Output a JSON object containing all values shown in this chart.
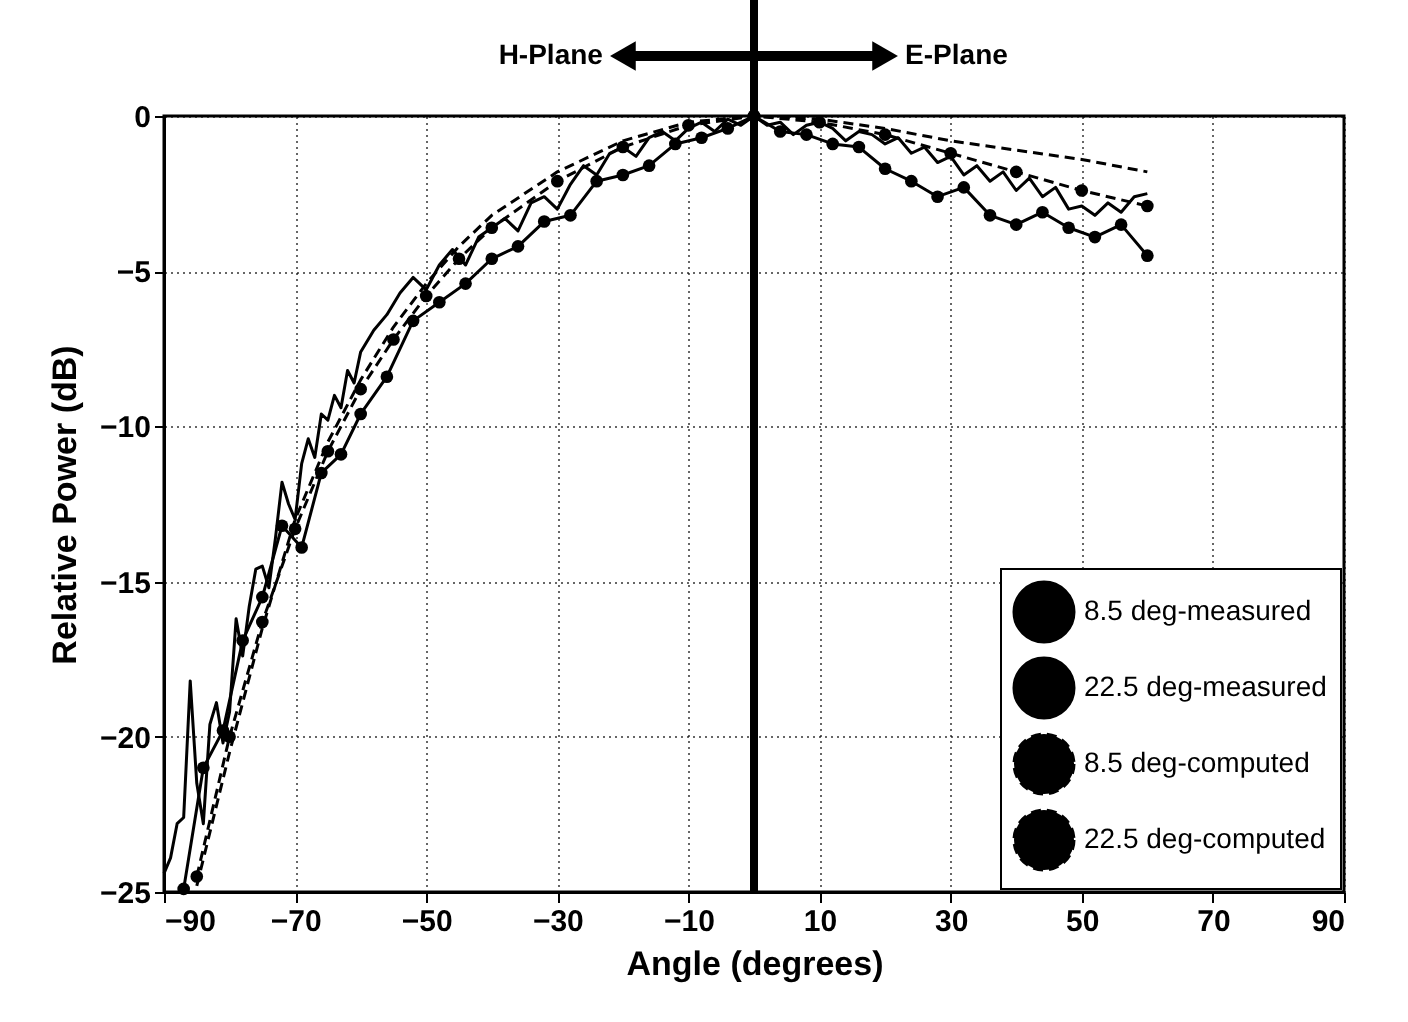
{
  "chart_data": {
    "type": "line",
    "xlabel": "Angle (degrees)",
    "ylabel": "Relative Power (dB)",
    "xlim": [
      -90,
      90
    ],
    "xticks": [
      -90,
      -70,
      -50,
      -30,
      -10,
      10,
      30,
      50,
      70,
      90
    ],
    "ylim": [
      -25,
      0
    ],
    "yticks": [
      0,
      -5,
      -10,
      -15,
      -20,
      -25
    ],
    "grid": true,
    "legend": "bottom right",
    "annotations": [
      "H-Plane",
      "E-Plane"
    ],
    "ref_lines": [
      {
        "axis": "x",
        "value": 0,
        "color": "#000000"
      }
    ],
    "series": [
      {
        "name": "8.5 deg-measured",
        "color": "#000000",
        "line_style": "solid",
        "marker": "none",
        "x": [
          -90,
          -89,
          -88,
          -87,
          -86,
          -85,
          -84,
          -83,
          -82,
          -81,
          -80,
          -79,
          -78,
          -77,
          -76,
          -75,
          -74,
          -73,
          -72,
          -71,
          -70,
          -69,
          -68,
          -67,
          -66,
          -65,
          -64,
          -63,
          -62,
          -61,
          -60,
          -58,
          -56,
          -54,
          -52,
          -50,
          -48,
          -46,
          -44,
          -42,
          -40,
          -38,
          -36,
          -34,
          -32,
          -30,
          -28,
          -26,
          -24,
          -22,
          -20,
          -18,
          -16,
          -14,
          -12,
          -10,
          -8,
          -6,
          -4,
          -2,
          0,
          2,
          4,
          6,
          8,
          10,
          12,
          14,
          16,
          18,
          20,
          22,
          24,
          26,
          28,
          30,
          32,
          34,
          36,
          38,
          40,
          42,
          44,
          46,
          48,
          50,
          52,
          54,
          56,
          58,
          60
        ],
        "values": [
          -24.4,
          -23.9,
          -22.8,
          -22.6,
          -18.2,
          -21.5,
          -22.8,
          -19.6,
          -18.9,
          -20.2,
          -19.2,
          -16.2,
          -17.4,
          -15.8,
          -14.6,
          -14.5,
          -15.2,
          -13.6,
          -11.8,
          -12.5,
          -13.0,
          -11.2,
          -10.4,
          -11.0,
          -9.6,
          -9.8,
          -9.0,
          -9.4,
          -8.2,
          -8.6,
          -7.6,
          -6.9,
          -6.4,
          -5.7,
          -5.2,
          -5.6,
          -4.8,
          -4.3,
          -4.8,
          -3.9,
          -3.6,
          -3.3,
          -3.7,
          -2.8,
          -2.6,
          -3.0,
          -2.2,
          -1.6,
          -1.9,
          -1.2,
          -1.0,
          -1.3,
          -0.7,
          -0.5,
          -0.8,
          -0.4,
          -0.2,
          -0.5,
          -0.1,
          -0.3,
          0,
          -0.3,
          -0.2,
          -0.6,
          -0.3,
          -0.2,
          -0.4,
          -0.8,
          -0.5,
          -0.6,
          -0.9,
          -0.7,
          -1.2,
          -1.0,
          -1.5,
          -1.3,
          -1.9,
          -1.6,
          -2.1,
          -1.8,
          -2.4,
          -2.0,
          -2.6,
          -2.3,
          -3.0,
          -2.9,
          -3.2,
          -2.8,
          -3.1,
          -2.6,
          -2.5
        ]
      },
      {
        "name": "22.5 deg-measured",
        "color": "#000000",
        "line_style": "solid",
        "marker": "circle",
        "x": [
          -87,
          -84,
          -81,
          -78,
          -75,
          -72,
          -69,
          -66,
          -63,
          -60,
          -56,
          -52,
          -48,
          -44,
          -40,
          -36,
          -32,
          -28,
          -24,
          -20,
          -16,
          -12,
          -8,
          -4,
          0,
          4,
          8,
          12,
          16,
          20,
          24,
          28,
          32,
          36,
          40,
          44,
          48,
          52,
          56,
          60
        ],
        "values": [
          -24.9,
          -21.0,
          -19.8,
          -16.9,
          -15.5,
          -13.2,
          -13.9,
          -11.5,
          -10.9,
          -9.6,
          -8.4,
          -6.6,
          -6.0,
          -5.4,
          -4.6,
          -4.2,
          -3.4,
          -3.2,
          -2.1,
          -1.9,
          -1.6,
          -0.9,
          -0.7,
          -0.4,
          0,
          -0.5,
          -0.6,
          -0.9,
          -1.0,
          -1.7,
          -2.1,
          -2.6,
          -2.3,
          -3.2,
          -3.5,
          -3.1,
          -3.6,
          -3.9,
          -3.5,
          -4.5
        ]
      },
      {
        "name": "8.5 deg-computed",
        "color": "#000000",
        "line_style": "dashed",
        "marker": "none",
        "x": [
          -85,
          -80,
          -75,
          -70,
          -65,
          -60,
          -55,
          -50,
          -45,
          -40,
          -30,
          -20,
          -10,
          0,
          10,
          20,
          30,
          40,
          50,
          60
        ],
        "values": [
          -24.8,
          -20.5,
          -16.5,
          -13.0,
          -10.5,
          -8.5,
          -6.8,
          -5.4,
          -4.2,
          -3.2,
          -1.8,
          -0.8,
          -0.2,
          0,
          -0.1,
          -0.4,
          -0.8,
          -1.1,
          -1.4,
          -1.8
        ]
      },
      {
        "name": "22.5 deg-computed",
        "color": "#000000",
        "line_style": "dashed",
        "marker": "circle",
        "x": [
          -85,
          -80,
          -75,
          -70,
          -65,
          -60,
          -55,
          -50,
          -45,
          -40,
          -30,
          -20,
          -10,
          0,
          10,
          20,
          30,
          40,
          50,
          60
        ],
        "values": [
          -24.5,
          -20.0,
          -16.3,
          -13.3,
          -10.8,
          -8.8,
          -7.2,
          -5.8,
          -4.6,
          -3.6,
          -2.1,
          -1.0,
          -0.3,
          0,
          -0.2,
          -0.6,
          -1.2,
          -1.8,
          -2.4,
          -2.9
        ]
      }
    ]
  }
}
